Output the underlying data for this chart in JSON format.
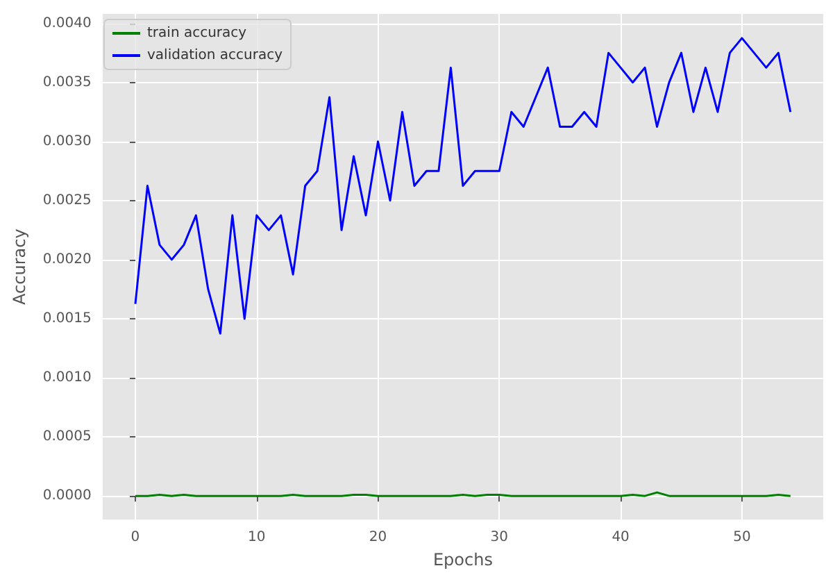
{
  "chart_data": {
    "type": "line",
    "xlabel": "Epochs",
    "ylabel": "Accuracy",
    "x": [
      0,
      1,
      2,
      3,
      4,
      5,
      6,
      7,
      8,
      9,
      10,
      11,
      12,
      13,
      14,
      15,
      16,
      17,
      18,
      19,
      20,
      21,
      22,
      23,
      24,
      25,
      26,
      27,
      28,
      29,
      30,
      31,
      32,
      33,
      34,
      35,
      36,
      37,
      38,
      39,
      40,
      41,
      42,
      43,
      44,
      45,
      46,
      47,
      48,
      49,
      50,
      51,
      52,
      53,
      54
    ],
    "series": [
      {
        "name": "train accuracy",
        "color": "#008000",
        "values": [
          0,
          0,
          1e-05,
          0,
          1e-05,
          0,
          0,
          0,
          0,
          0,
          0,
          0,
          0,
          1e-05,
          0,
          0,
          0,
          0,
          1e-05,
          1e-05,
          0,
          0,
          0,
          0,
          0,
          0,
          0,
          1e-05,
          0,
          1e-05,
          1e-05,
          0,
          0,
          0,
          0,
          0,
          0,
          0,
          0,
          0,
          0,
          1e-05,
          0,
          3e-05,
          0,
          0,
          0,
          0,
          0,
          0,
          0,
          0,
          0,
          1e-05,
          0
        ]
      },
      {
        "name": "validation accuracy",
        "color": "#0000ff",
        "values": [
          0.001625,
          0.002625,
          0.002125,
          0.002,
          0.002125,
          0.002375,
          0.00175,
          0.001375,
          0.002375,
          0.0015,
          0.002375,
          0.00225,
          0.002375,
          0.001875,
          0.002625,
          0.00275,
          0.003375,
          0.00225,
          0.002875,
          0.002375,
          0.003,
          0.0025,
          0.00325,
          0.002625,
          0.00275,
          0.00275,
          0.003625,
          0.002625,
          0.00275,
          0.00275,
          0.00275,
          0.00325,
          0.003125,
          0.003375,
          0.003625,
          0.003125,
          0.003125,
          0.00325,
          0.003125,
          0.00375,
          0.003625,
          0.0035,
          0.003625,
          0.003125,
          0.0035,
          0.00375,
          0.00325,
          0.003625,
          0.00325,
          0.00375,
          0.003875,
          0.00375,
          0.003625,
          0.00375,
          0.00325
        ]
      }
    ],
    "xlim": [
      -2.7,
      56.7
    ],
    "xticks": [
      0,
      10,
      20,
      30,
      40,
      50
    ],
    "ylim": [
      -0.0002,
      0.00408
    ],
    "yticks": [
      {
        "value": 0,
        "label": "0.0000"
      },
      {
        "value": 0.0005,
        "label": "0.0005"
      },
      {
        "value": 0.001,
        "label": "0.0010"
      },
      {
        "value": 0.0015,
        "label": "0.0015"
      },
      {
        "value": 0.002,
        "label": "0.0020"
      },
      {
        "value": 0.0025,
        "label": "0.0025"
      },
      {
        "value": 0.003,
        "label": "0.0030"
      },
      {
        "value": 0.0035,
        "label": "0.0035"
      },
      {
        "value": 0.004,
        "label": "0.0040"
      }
    ],
    "grid": true,
    "legend": "top left",
    "marker": "none",
    "line_style": "solid"
  }
}
